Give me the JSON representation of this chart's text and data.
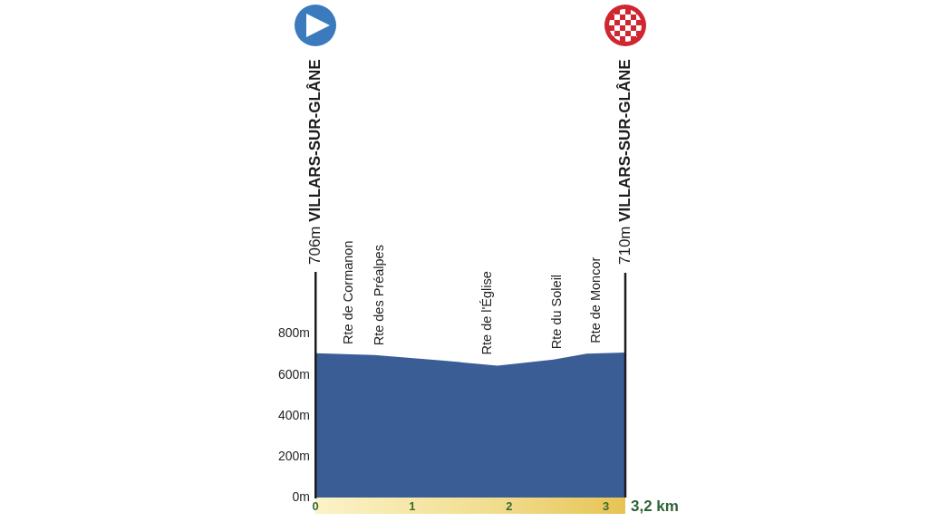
{
  "chart_data": {
    "type": "area",
    "x": [
      0,
      0.61,
      1.33,
      1.88,
      2.46,
      2.8,
      3.2
    ],
    "values": [
      706,
      697,
      670,
      645,
      675,
      704,
      710
    ],
    "color": "#3a5d96",
    "xlim": [
      0,
      3.2
    ],
    "xticks": [
      0,
      1,
      2,
      3
    ],
    "xlabel": "3,2 km",
    "ylim": [
      0,
      1100
    ],
    "yticks": [
      {
        "value": 0,
        "label": "0m"
      },
      {
        "value": 200,
        "label": "200m"
      },
      {
        "value": 400,
        "label": "400m"
      },
      {
        "value": 600,
        "label": "600m"
      },
      {
        "value": 800,
        "label": "800m"
      }
    ],
    "ref_lines": [
      {
        "axis": "x",
        "value": 3.2,
        "label": "710m VILLARS-SUR-GLÂNE"
      }
    ],
    "annotations": [
      "706m VILLARS-SUR-GLÂNE",
      {
        "text": "Rte de Cormanon",
        "x": 0.35,
        "y": 701
      },
      {
        "text": "Rte des Préalpes",
        "x": 0.66,
        "y": 695
      },
      {
        "text": "Rte de l'Église",
        "x": 1.78,
        "y": 650
      },
      {
        "text": "Rte du Soleil",
        "x": 2.5,
        "y": 678
      },
      {
        "text": "Rte de Moncor",
        "x": 2.9,
        "y": 706
      }
    ]
  }
}
